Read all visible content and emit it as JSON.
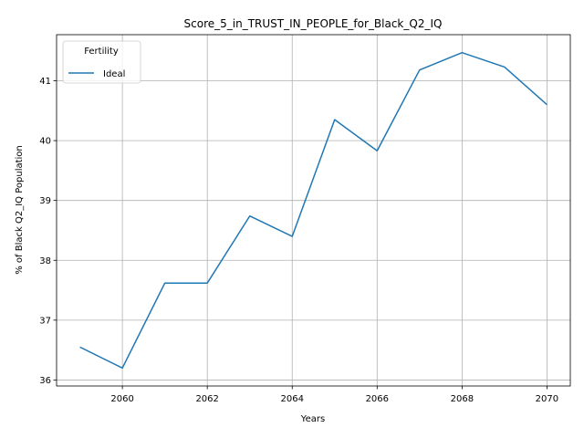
{
  "chart_data": {
    "type": "line",
    "title": "Score_5_in_TRUST_IN_PEOPLE_for_Black_Q2_IQ",
    "xlabel": "Years",
    "ylabel": "% of Black Q2_IQ Population",
    "x": [
      2059,
      2060,
      2061,
      2062,
      2063,
      2064,
      2065,
      2066,
      2067,
      2068,
      2069,
      2070
    ],
    "series": [
      {
        "name": "Ideal",
        "color": "#1f77b4",
        "values": [
          36.55,
          36.2,
          37.62,
          37.62,
          38.74,
          38.4,
          40.35,
          39.83,
          41.18,
          41.47,
          41.23,
          40.6
        ]
      }
    ],
    "xticks": [
      2060,
      2062,
      2064,
      2066,
      2068,
      2070
    ],
    "yticks": [
      36,
      37,
      38,
      39,
      40,
      41
    ],
    "xlim": [
      2058.45,
      2070.55
    ],
    "ylim": [
      35.9,
      41.77
    ],
    "grid": true,
    "legend": {
      "title": "Fertility",
      "placement": "top-left"
    }
  }
}
